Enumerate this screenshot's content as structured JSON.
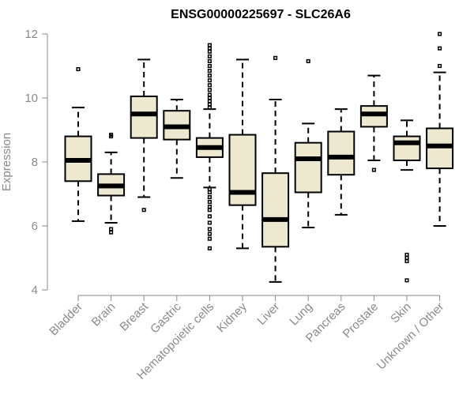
{
  "chart_data": {
    "type": "boxplot",
    "title": "ENSG00000225697 - SLC26A6",
    "xlabel": "",
    "ylabel": "Expression",
    "ylim": [
      4,
      12
    ],
    "yticks": [
      4,
      6,
      8,
      10,
      12
    ],
    "box_color": "#ede8d0",
    "categories": [
      "Bladder",
      "Brain",
      "Breast",
      "Gastric",
      "Hematopoietic cells",
      "Kidney",
      "Liver",
      "Lung",
      "Pancreas",
      "Prostate",
      "Skin",
      "Unknown / Other"
    ],
    "series": [
      {
        "category": "Bladder",
        "whisker_low": 6.15,
        "q1": 7.4,
        "median": 8.05,
        "q3": 8.8,
        "whisker_high": 9.7,
        "outliers": [
          10.9
        ]
      },
      {
        "category": "Brain",
        "whisker_low": 6.1,
        "q1": 6.95,
        "median": 7.25,
        "q3": 7.62,
        "whisker_high": 8.3,
        "outliers": [
          5.8,
          5.9,
          8.8,
          8.85
        ]
      },
      {
        "category": "Breast",
        "whisker_low": 6.9,
        "q1": 8.75,
        "median": 9.5,
        "q3": 10.05,
        "whisker_high": 11.2,
        "outliers": [
          6.5
        ]
      },
      {
        "category": "Gastric",
        "whisker_low": 7.5,
        "q1": 8.7,
        "median": 9.1,
        "q3": 9.6,
        "whisker_high": 9.95,
        "outliers": []
      },
      {
        "category": "Hematopoietic cells",
        "whisker_low": 7.2,
        "q1": 8.15,
        "median": 8.45,
        "q3": 8.75,
        "whisker_high": 9.65,
        "outliers": [
          5.3,
          5.6,
          5.75,
          5.9,
          6.1,
          6.3,
          6.5,
          6.6,
          6.75,
          6.9,
          7.05,
          7.15,
          9.7,
          9.8,
          9.9,
          10.0,
          10.1,
          10.25,
          10.4,
          10.55,
          10.7,
          10.85,
          11.0,
          11.15,
          11.3,
          11.45,
          11.55,
          11.65
        ]
      },
      {
        "category": "Kidney",
        "whisker_low": 5.3,
        "q1": 6.65,
        "median": 7.05,
        "q3": 8.85,
        "whisker_high": 11.2,
        "outliers": []
      },
      {
        "category": "Liver",
        "whisker_low": 4.25,
        "q1": 5.35,
        "median": 6.2,
        "q3": 7.65,
        "whisker_high": 9.95,
        "outliers": [
          11.25
        ]
      },
      {
        "category": "Lung",
        "whisker_low": 5.95,
        "q1": 7.05,
        "median": 8.1,
        "q3": 8.6,
        "whisker_high": 9.2,
        "outliers": [
          11.15
        ]
      },
      {
        "category": "Pancreas",
        "whisker_low": 6.35,
        "q1": 7.6,
        "median": 8.15,
        "q3": 8.95,
        "whisker_high": 9.65,
        "outliers": []
      },
      {
        "category": "Prostate",
        "whisker_low": 8.05,
        "q1": 9.1,
        "median": 9.5,
        "q3": 9.75,
        "whisker_high": 10.7,
        "outliers": [
          7.75
        ]
      },
      {
        "category": "Skin",
        "whisker_low": 7.75,
        "q1": 8.05,
        "median": 8.6,
        "q3": 8.8,
        "whisker_high": 9.3,
        "outliers": [
          4.3,
          4.9,
          5.0,
          5.1
        ]
      },
      {
        "category": "Unknown / Other",
        "whisker_low": 6.0,
        "q1": 7.8,
        "median": 8.5,
        "q3": 9.05,
        "whisker_high": 10.8,
        "outliers": [
          11.0,
          11.55,
          12.0
        ]
      }
    ]
  }
}
